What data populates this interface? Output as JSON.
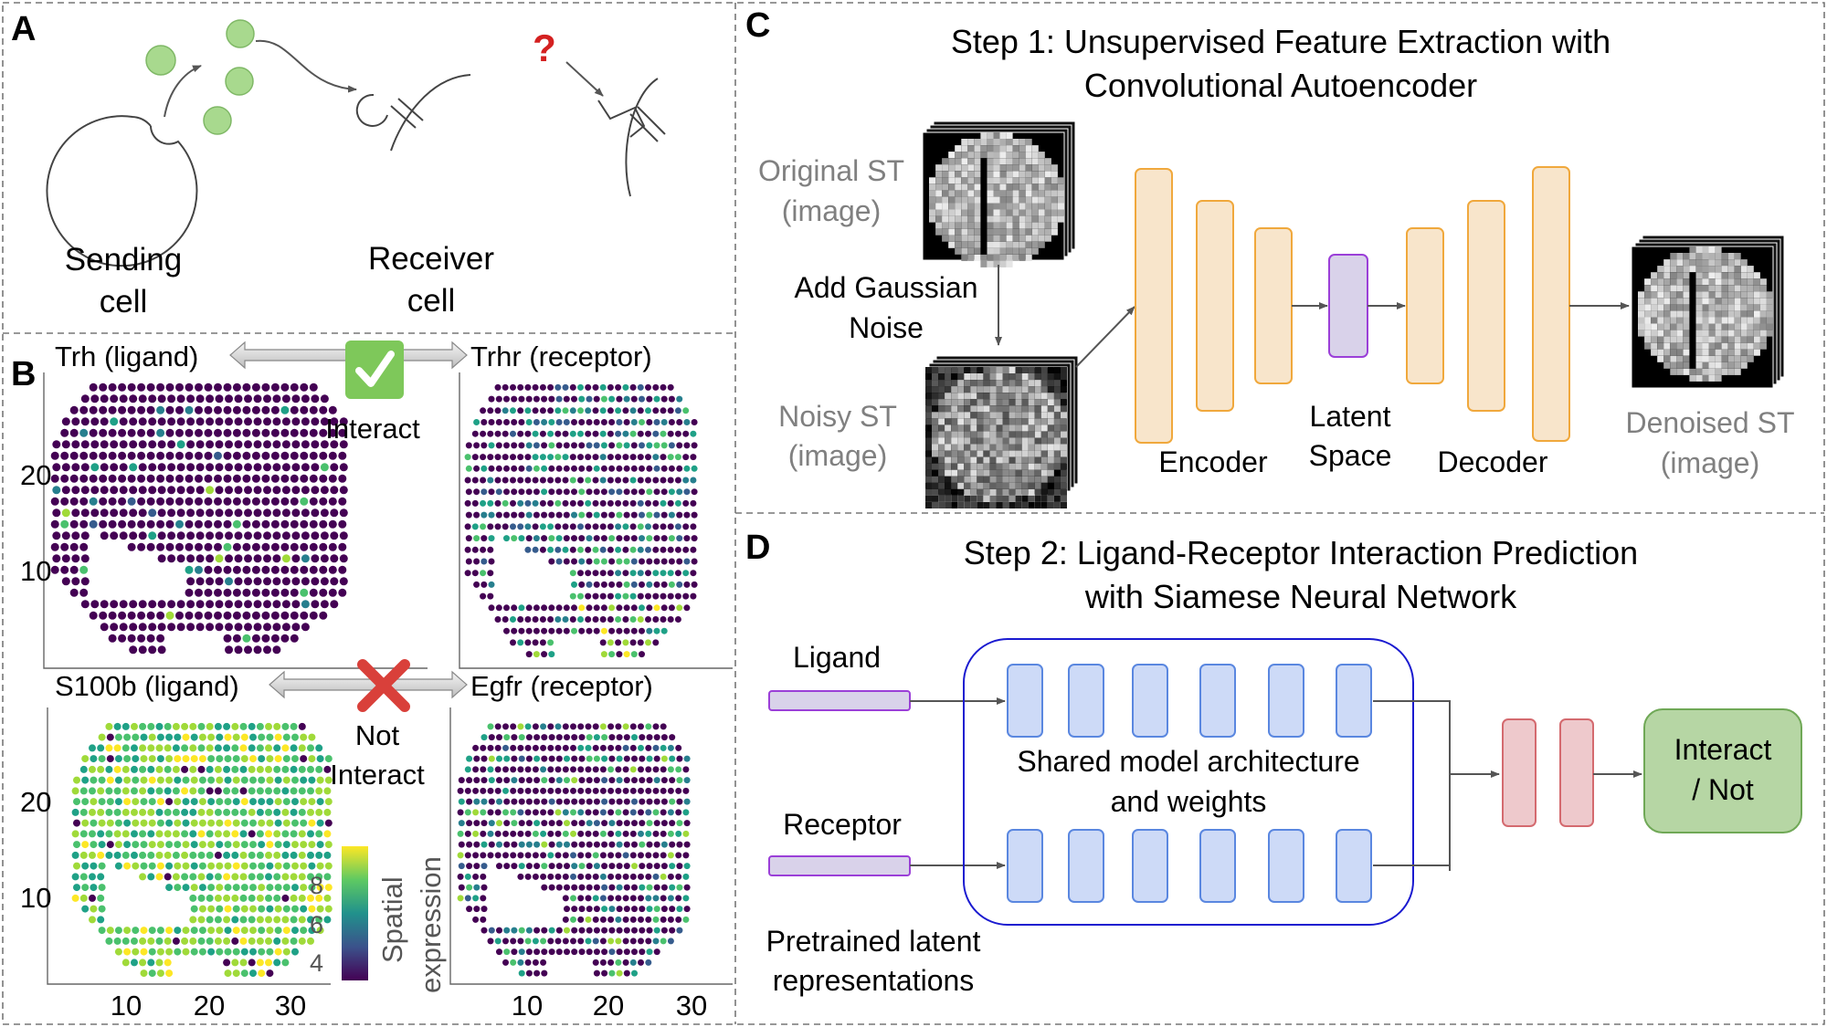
{
  "panel_a": {
    "letter": "A",
    "sending_line1": "Sending",
    "sending_line2": "cell",
    "receiver_line1": "Receiver",
    "receiver_line2": "cell",
    "question": "?"
  },
  "panel_b": {
    "letter": "B",
    "trh": "Trh (ligand)",
    "trhr": "Trhr (receptor)",
    "interact": "Interact",
    "s100b": "S100b (ligand)",
    "egfr": "Egfr (receptor)",
    "not_line1": "Not",
    "not_line2": "Interact",
    "y_ticks": [
      "20",
      "10"
    ],
    "x_ticks": [
      "10",
      "20",
      "30"
    ],
    "colorbar_ticks": [
      "8",
      "6",
      "4"
    ],
    "colorbar_label_line1": "Spatial",
    "colorbar_label_line2": "expression",
    "colors": {
      "check": "#7ec85a",
      "cross": "#d9403a",
      "dot_low": "#440154",
      "dot_high": "#fde725"
    }
  },
  "panel_c": {
    "letter": "C",
    "title_line1": "Step 1: Unsupervised Feature Extraction with",
    "title_line2": "Convolutional Autoencoder",
    "original_line1": "Original ST",
    "original_line2": "(image)",
    "noise_line1": "Add Gaussian",
    "noise_line2": "Noise",
    "noisy_line1": "Noisy ST",
    "noisy_line2": "(image)",
    "encoder": "Encoder",
    "latent_line1": "Latent",
    "latent_line2": "Space",
    "decoder": "Decoder",
    "denoised_line1": "Denoised ST",
    "denoised_line2": "(image)",
    "colors": {
      "block_fill": "#f8e5cb",
      "block_stroke": "#f0a83c",
      "latent_fill": "#d9d2ea",
      "latent_stroke": "#9b3fd8"
    }
  },
  "panel_d": {
    "letter": "D",
    "title_line1": "Step 2: Ligand-Receptor Interaction Prediction",
    "title_line2": "with Siamese Neural Network",
    "ligand": "Ligand",
    "receptor": "Receptor",
    "pretrained_line1": "Pretrained latent",
    "pretrained_line2": "representations",
    "shared_line1": "Shared model architecture",
    "shared_line2": "and weights",
    "output_line1": "Interact",
    "output_line2": "/ Not",
    "colors": {
      "blue_fill": "#cddaf7",
      "blue_stroke": "#5a87e0",
      "frame": "#1a1ad0",
      "red_fill": "#eec9cc",
      "red_stroke": "#d46a6f",
      "green_fill": "#b6d6a4",
      "green_stroke": "#6fa856"
    }
  }
}
